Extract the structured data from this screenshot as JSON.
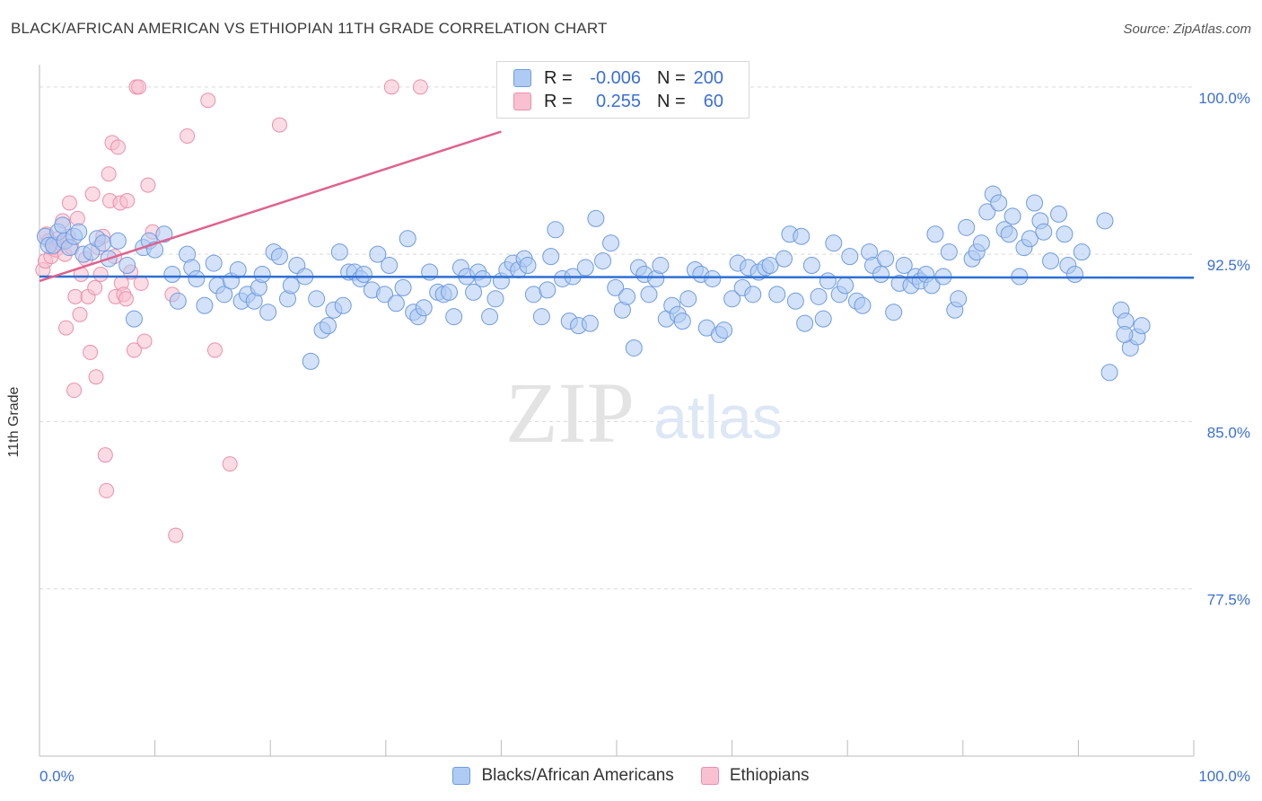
{
  "header": {
    "title": "BLACK/AFRICAN AMERICAN VS ETHIOPIAN 11TH GRADE CORRELATION CHART",
    "source": "Source: ZipAtlas.com"
  },
  "watermark": {
    "zip": "ZIP",
    "atlas": "atlas"
  },
  "colors": {
    "blue_fill": "#aecbf3",
    "blue_stroke": "#6f9be0",
    "blue_line": "#2d6fd4",
    "pink_fill": "#f8c0d0",
    "pink_stroke": "#ec8fab",
    "pink_line": "#e0628e",
    "tick_label": "#3b6fd6",
    "grid": "#d9d9d9"
  },
  "legend": {
    "rows": [
      {
        "r_label": "R =",
        "r_value": "-0.006",
        "n_label": "N =",
        "n_value": "200",
        "color": "#aecbf3",
        "border": "#6f9be0"
      },
      {
        "r_label": "R =",
        "r_value": "0.255",
        "n_label": "N =",
        "n_value": "60",
        "color": "#f8c0d0",
        "border": "#ec8fab"
      }
    ]
  },
  "bottom_legend": [
    {
      "label": "Blacks/African Americans",
      "color": "#aecbf3",
      "border": "#6f9be0"
    },
    {
      "label": "Ethiopians",
      "color": "#f8c0d0",
      "border": "#ec8fab"
    }
  ],
  "chart_data": {
    "type": "scatter",
    "title": "BLACK/AFRICAN AMERICAN VS ETHIOPIAN 11TH GRADE CORRELATION CHART",
    "xlabel": "",
    "ylabel": "11th Grade",
    "xlim": [
      0,
      100
    ],
    "ylim": [
      70,
      101
    ],
    "x_tick_labels": [
      "0.0%",
      "100.0%"
    ],
    "y_ticks": [
      77.5,
      85.0,
      92.5,
      100.0
    ],
    "y_tick_labels": [
      "77.5%",
      "85.0%",
      "92.5%",
      "100.0%"
    ],
    "grid": true,
    "legend_position": "top-center",
    "series": [
      {
        "name": "Blacks/African Americans",
        "trend": {
          "x": [
            0,
            100
          ],
          "y": [
            91.5,
            91.45
          ]
        },
        "points": [
          [
            0.5,
            93.3
          ],
          [
            0.8,
            92.9
          ],
          [
            1.2,
            92.9
          ],
          [
            1.6,
            93.5
          ],
          [
            2.0,
            93.8
          ],
          [
            2.2,
            93.1
          ],
          [
            2.6,
            92.8
          ],
          [
            3.0,
            93.3
          ],
          [
            3.4,
            93.5
          ],
          [
            3.8,
            92.5
          ],
          [
            4.5,
            92.6
          ],
          [
            5.0,
            93.2
          ],
          [
            5.5,
            93.0
          ],
          [
            6.0,
            92.3
          ],
          [
            6.8,
            93.1
          ],
          [
            7.6,
            92.0
          ],
          [
            8.2,
            89.6
          ],
          [
            9.0,
            92.8
          ],
          [
            9.5,
            93.1
          ],
          [
            10.0,
            92.7
          ],
          [
            10.8,
            93.4
          ],
          [
            11.5,
            91.6
          ],
          [
            12.0,
            90.4
          ],
          [
            12.8,
            92.5
          ],
          [
            13.2,
            91.9
          ],
          [
            13.6,
            91.4
          ],
          [
            14.3,
            90.2
          ],
          [
            15.1,
            92.1
          ],
          [
            15.4,
            91.1
          ],
          [
            16.0,
            90.7
          ],
          [
            16.6,
            91.3
          ],
          [
            17.2,
            91.8
          ],
          [
            17.5,
            90.4
          ],
          [
            18.0,
            90.7
          ],
          [
            18.6,
            90.4
          ],
          [
            19.0,
            91.0
          ],
          [
            19.3,
            91.6
          ],
          [
            19.8,
            89.9
          ],
          [
            20.3,
            92.6
          ],
          [
            20.8,
            92.4
          ],
          [
            21.5,
            90.5
          ],
          [
            21.8,
            91.1
          ],
          [
            22.3,
            92.0
          ],
          [
            23.0,
            91.5
          ],
          [
            23.5,
            87.7
          ],
          [
            24.0,
            90.5
          ],
          [
            24.5,
            89.1
          ],
          [
            25.0,
            89.3
          ],
          [
            25.5,
            90.0
          ],
          [
            26.0,
            92.6
          ],
          [
            26.3,
            90.2
          ],
          [
            26.8,
            91.7
          ],
          [
            27.3,
            91.7
          ],
          [
            27.8,
            91.4
          ],
          [
            28.1,
            91.6
          ],
          [
            28.8,
            90.9
          ],
          [
            29.3,
            92.5
          ],
          [
            29.9,
            90.7
          ],
          [
            30.3,
            92.0
          ],
          [
            30.9,
            90.3
          ],
          [
            31.5,
            91.0
          ],
          [
            31.9,
            93.2
          ],
          [
            32.4,
            89.9
          ],
          [
            32.8,
            89.7
          ],
          [
            33.3,
            90.1
          ],
          [
            33.8,
            91.7
          ],
          [
            34.5,
            90.8
          ],
          [
            35.0,
            90.7
          ],
          [
            35.5,
            90.8
          ],
          [
            35.9,
            89.7
          ],
          [
            36.5,
            91.9
          ],
          [
            37.0,
            91.5
          ],
          [
            37.6,
            90.8
          ],
          [
            38.0,
            91.7
          ],
          [
            38.4,
            91.4
          ],
          [
            39.0,
            89.7
          ],
          [
            39.5,
            90.5
          ],
          [
            40.0,
            91.3
          ],
          [
            40.5,
            91.8
          ],
          [
            41.0,
            92.1
          ],
          [
            41.5,
            91.8
          ],
          [
            42.0,
            92.3
          ],
          [
            42.3,
            92.0
          ],
          [
            42.8,
            90.7
          ],
          [
            43.5,
            89.7
          ],
          [
            44.0,
            90.9
          ],
          [
            44.3,
            92.4
          ],
          [
            44.7,
            93.6
          ],
          [
            45.3,
            91.4
          ],
          [
            45.9,
            89.5
          ],
          [
            46.2,
            91.5
          ],
          [
            46.7,
            89.3
          ],
          [
            47.3,
            91.9
          ],
          [
            47.7,
            89.4
          ],
          [
            48.2,
            94.1
          ],
          [
            48.8,
            92.2
          ],
          [
            49.5,
            93.0
          ],
          [
            49.9,
            91.0
          ],
          [
            50.5,
            90.0
          ],
          [
            50.9,
            90.6
          ],
          [
            51.5,
            88.3
          ],
          [
            51.9,
            91.9
          ],
          [
            52.4,
            91.6
          ],
          [
            52.8,
            90.7
          ],
          [
            53.4,
            91.4
          ],
          [
            53.8,
            92.0
          ],
          [
            54.3,
            89.6
          ],
          [
            54.8,
            90.2
          ],
          [
            55.3,
            89.8
          ],
          [
            55.7,
            89.5
          ],
          [
            56.2,
            90.5
          ],
          [
            56.8,
            91.8
          ],
          [
            57.3,
            91.6
          ],
          [
            57.8,
            89.2
          ],
          [
            58.3,
            91.4
          ],
          [
            58.9,
            88.9
          ],
          [
            59.3,
            89.1
          ],
          [
            60.0,
            90.5
          ],
          [
            60.5,
            92.1
          ],
          [
            60.9,
            91.0
          ],
          [
            61.4,
            91.9
          ],
          [
            61.8,
            90.7
          ],
          [
            62.3,
            91.7
          ],
          [
            62.9,
            91.9
          ],
          [
            63.3,
            92.0
          ],
          [
            63.9,
            90.7
          ],
          [
            64.5,
            92.3
          ],
          [
            65.0,
            93.4
          ],
          [
            65.5,
            90.4
          ],
          [
            66.0,
            93.3
          ],
          [
            66.3,
            89.4
          ],
          [
            66.9,
            92.0
          ],
          [
            67.5,
            90.6
          ],
          [
            67.9,
            89.6
          ],
          [
            68.3,
            91.3
          ],
          [
            68.8,
            93.0
          ],
          [
            69.3,
            90.7
          ],
          [
            69.8,
            91.1
          ],
          [
            70.2,
            92.4
          ],
          [
            70.8,
            90.4
          ],
          [
            71.3,
            90.2
          ],
          [
            71.9,
            92.6
          ],
          [
            72.2,
            92.0
          ],
          [
            72.9,
            91.6
          ],
          [
            73.3,
            92.3
          ],
          [
            74.0,
            89.9
          ],
          [
            74.5,
            91.2
          ],
          [
            74.9,
            92.0
          ],
          [
            75.5,
            91.1
          ],
          [
            75.9,
            91.5
          ],
          [
            76.3,
            91.3
          ],
          [
            76.8,
            91.6
          ],
          [
            77.3,
            91.1
          ],
          [
            77.6,
            93.4
          ],
          [
            78.3,
            91.5
          ],
          [
            78.8,
            92.6
          ],
          [
            79.3,
            90.0
          ],
          [
            79.6,
            90.5
          ],
          [
            80.3,
            93.7
          ],
          [
            80.8,
            92.3
          ],
          [
            81.2,
            92.6
          ],
          [
            81.6,
            93.0
          ],
          [
            82.1,
            94.4
          ],
          [
            82.6,
            95.2
          ],
          [
            83.1,
            94.8
          ],
          [
            83.6,
            93.6
          ],
          [
            84.0,
            93.4
          ],
          [
            84.3,
            94.2
          ],
          [
            84.9,
            91.5
          ],
          [
            85.3,
            92.8
          ],
          [
            85.8,
            93.2
          ],
          [
            86.2,
            94.8
          ],
          [
            86.7,
            94.0
          ],
          [
            87.0,
            93.5
          ],
          [
            87.6,
            92.2
          ],
          [
            88.3,
            94.3
          ],
          [
            88.8,
            93.4
          ],
          [
            89.1,
            92.0
          ],
          [
            89.7,
            91.6
          ],
          [
            90.3,
            92.6
          ],
          [
            92.7,
            87.2
          ],
          [
            92.3,
            94.0
          ],
          [
            93.7,
            90.0
          ],
          [
            94.1,
            89.5
          ],
          [
            94.5,
            88.3
          ],
          [
            95.1,
            88.8
          ],
          [
            95.5,
            89.3
          ],
          [
            94.0,
            88.9
          ]
        ]
      },
      {
        "name": "Ethiopians",
        "trend": {
          "x": [
            0,
            40
          ],
          "y": [
            91.3,
            98.0
          ]
        },
        "points": [
          [
            0.3,
            91.8
          ],
          [
            0.5,
            92.2
          ],
          [
            0.6,
            93.4
          ],
          [
            0.8,
            93.1
          ],
          [
            1.0,
            92.4
          ],
          [
            1.2,
            92.8
          ],
          [
            1.4,
            92.7
          ],
          [
            1.6,
            93.2
          ],
          [
            1.8,
            93.0
          ],
          [
            2.0,
            94.0
          ],
          [
            2.2,
            92.5
          ],
          [
            2.3,
            89.2
          ],
          [
            2.5,
            93.3
          ],
          [
            2.6,
            94.8
          ],
          [
            2.8,
            92.8
          ],
          [
            3.0,
            86.4
          ],
          [
            3.1,
            90.6
          ],
          [
            3.3,
            94.1
          ],
          [
            3.5,
            89.8
          ],
          [
            3.6,
            91.6
          ],
          [
            4.0,
            92.3
          ],
          [
            4.2,
            90.6
          ],
          [
            4.4,
            88.1
          ],
          [
            4.6,
            95.2
          ],
          [
            4.8,
            91.0
          ],
          [
            4.9,
            87.0
          ],
          [
            5.1,
            92.8
          ],
          [
            5.3,
            91.6
          ],
          [
            5.5,
            93.3
          ],
          [
            5.7,
            83.5
          ],
          [
            5.8,
            81.9
          ],
          [
            6.0,
            96.1
          ],
          [
            6.1,
            94.9
          ],
          [
            6.3,
            97.5
          ],
          [
            6.5,
            92.4
          ],
          [
            6.6,
            90.6
          ],
          [
            6.8,
            97.3
          ],
          [
            7.0,
            94.8
          ],
          [
            7.1,
            91.2
          ],
          [
            7.3,
            90.7
          ],
          [
            7.5,
            90.5
          ],
          [
            7.6,
            94.9
          ],
          [
            7.9,
            91.7
          ],
          [
            8.2,
            88.2
          ],
          [
            8.4,
            100.0
          ],
          [
            8.6,
            100.0
          ],
          [
            8.8,
            91.2
          ],
          [
            9.1,
            88.6
          ],
          [
            9.4,
            95.6
          ],
          [
            9.8,
            93.5
          ],
          [
            11.5,
            90.7
          ],
          [
            11.8,
            79.9
          ],
          [
            12.8,
            97.8
          ],
          [
            14.6,
            99.4
          ],
          [
            15.2,
            88.2
          ],
          [
            16.5,
            83.1
          ],
          [
            20.8,
            98.3
          ],
          [
            30.5,
            100.0
          ],
          [
            33.0,
            100.0
          ]
        ]
      }
    ]
  }
}
